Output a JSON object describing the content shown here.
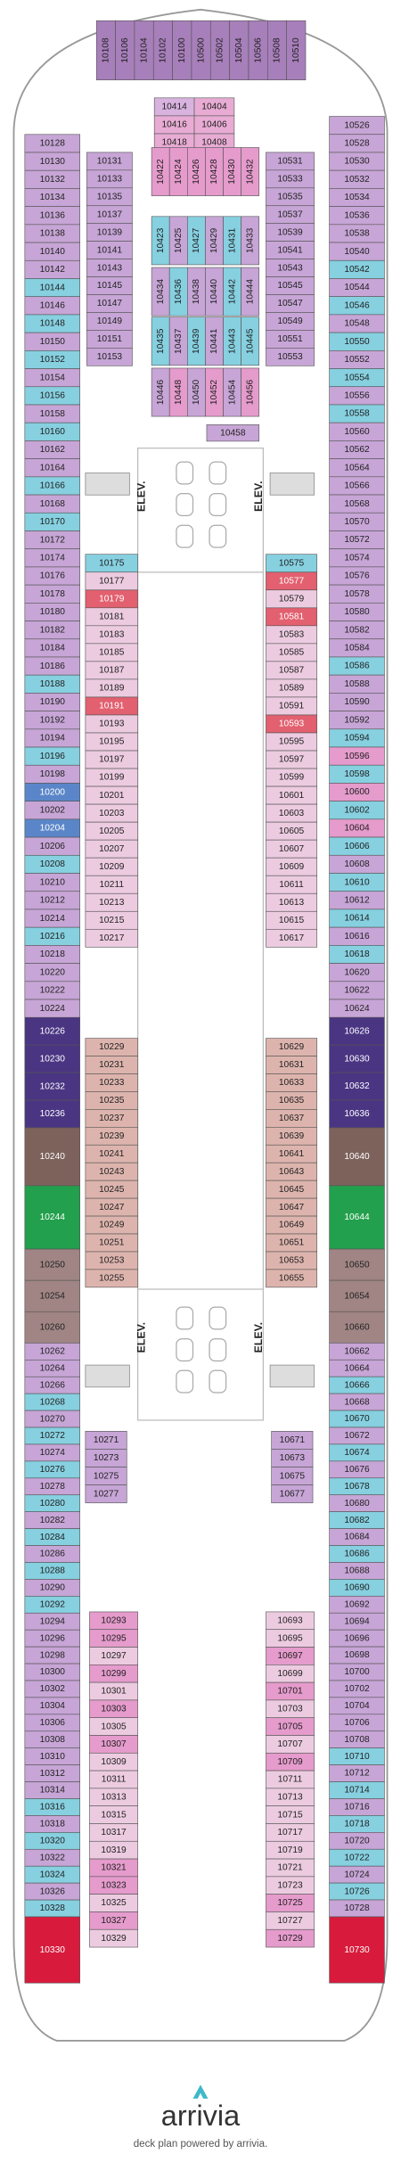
{
  "brand": "arrivia",
  "footer": "deck plan powered by arrivia.",
  "elevators": [
    "ELEV.",
    "ELEV.",
    "ELEV.",
    "ELEV."
  ],
  "sections": [
    {
      "cabins": [
        "10108",
        "10106",
        "10104",
        "10102",
        "10100",
        "10500",
        "10502",
        "10504",
        "10506",
        "10508",
        "10510"
      ],
      "colors": [
        "#a77fba",
        "#a77fba",
        "#a77fba",
        "#a77fba",
        "#a77fba",
        "#a77fba",
        "#a77fba",
        "#a77fba",
        "#a77fba",
        "#a77fba",
        "#a77fba"
      ]
    },
    {
      "cabins": [
        "10128",
        "10130",
        "10132",
        "10134",
        "10136",
        "10138",
        "10140",
        "10142",
        "10144",
        "10146",
        "10148",
        "10150",
        "10152",
        "10154",
        "10156",
        "10158",
        "10160",
        "10162",
        "10164",
        "10166",
        "10168",
        "10170",
        "10172",
        "10174",
        "10176",
        "10178",
        "10180",
        "10182",
        "10184",
        "10186",
        "10188",
        "10190",
        "10192",
        "10194",
        "10196",
        "10198",
        "10200",
        "10202",
        "10204",
        "10206",
        "10208",
        "10210",
        "10212",
        "10214",
        "10216",
        "10218",
        "10220",
        "10222",
        "10224",
        "10226",
        "10230",
        "10232",
        "10236",
        "10240",
        "10244",
        "10250",
        "10254",
        "10260",
        "10262",
        "10264",
        "10266",
        "10268",
        "10270",
        "10272",
        "10274",
        "10276",
        "10278",
        "10280",
        "10282",
        "10284",
        "10286",
        "10288",
        "10290",
        "10292",
        "10294",
        "10296",
        "10298",
        "10300",
        "10302",
        "10304",
        "10306",
        "10308",
        "10310",
        "10312",
        "10314",
        "10316",
        "10318",
        "10320",
        "10322",
        "10324",
        "10326",
        "10328",
        "10330"
      ],
      "colors": [
        "#c7a5d6",
        "#c7a5d6",
        "#c7a5d6",
        "#c7a5d6",
        "#c7a5d6",
        "#c7a5d6",
        "#c7a5d6",
        "#c7a5d6",
        "#86d0e0",
        "#c7a5d6",
        "#86d0e0",
        "#c7a5d6",
        "#86d0e0",
        "#c7a5d6",
        "#86d0e0",
        "#c7a5d6",
        "#86d0e0",
        "#c7a5d6",
        "#c7a5d6",
        "#86d0e0",
        "#c7a5d6",
        "#86d0e0",
        "#c7a5d6",
        "#c7a5d6",
        "#c7a5d6",
        "#c7a5d6",
        "#c7a5d6",
        "#c7a5d6",
        "#c7a5d6",
        "#c7a5d6",
        "#86d0e0",
        "#c7a5d6",
        "#c7a5d6",
        "#c7a5d6",
        "#86d0e0",
        "#c7a5d6",
        "#5a86c9",
        "#c7a5d6",
        "#5a86c9",
        "#c7a5d6",
        "#86d0e0",
        "#c7a5d6",
        "#c7a5d6",
        "#c7a5d6",
        "#86d0e0",
        "#c7a5d6",
        "#c7a5d6",
        "#c7a5d6",
        "#c7a5d6",
        "#4a3583",
        "#4a3583",
        "#4a3583",
        "#4a3583",
        "#7d625c",
        "#23a04d",
        "#a08584",
        "#a08584",
        "#a08584",
        "#c7a5d6",
        "#c7a5d6",
        "#c7a5d6",
        "#86d0e0",
        "#c7a5d6",
        "#86d0e0",
        "#c7a5d6",
        "#86d0e0",
        "#c7a5d6",
        "#86d0e0",
        "#c7a5d6",
        "#86d0e0",
        "#c7a5d6",
        "#86d0e0",
        "#c7a5d6",
        "#86d0e0",
        "#c7a5d6",
        "#c7a5d6",
        "#c7a5d6",
        "#c7a5d6",
        "#c7a5d6",
        "#c7a5d6",
        "#c7a5d6",
        "#c7a5d6",
        "#c7a5d6",
        "#c7a5d6",
        "#c7a5d6",
        "#86d0e0",
        "#c7a5d6",
        "#86d0e0",
        "#c7a5d6",
        "#86d0e0",
        "#c7a5d6",
        "#86d0e0",
        "#d81b3c"
      ]
    },
    {
      "cabins": [
        "10526",
        "10528",
        "10530",
        "10532",
        "10534",
        "10536",
        "10538",
        "10540",
        "10542",
        "10544",
        "10546",
        "10548",
        "10550",
        "10552",
        "10554",
        "10556",
        "10558",
        "10560",
        "10562",
        "10564",
        "10566",
        "10568",
        "10570",
        "10572",
        "10574",
        "10576",
        "10578",
        "10580",
        "10582",
        "10584",
        "10586",
        "10588",
        "10590",
        "10592",
        "10594",
        "10596",
        "10598",
        "10600",
        "10602",
        "10604",
        "10606",
        "10608",
        "10610",
        "10612",
        "10614",
        "10616",
        "10618",
        "10620",
        "10622",
        "10624",
        "10626",
        "10630",
        "10632",
        "10636",
        "10640",
        "10644",
        "10650",
        "10654",
        "10660",
        "10662",
        "10664",
        "10666",
        "10668",
        "10670",
        "10672",
        "10674",
        "10676",
        "10678",
        "10680",
        "10682",
        "10684",
        "10686",
        "10688",
        "10690",
        "10692",
        "10694",
        "10696",
        "10698",
        "10700",
        "10702",
        "10704",
        "10706",
        "10708",
        "10710",
        "10712",
        "10714",
        "10716",
        "10718",
        "10720",
        "10722",
        "10724",
        "10726",
        "10728",
        "10730"
      ],
      "colors": [
        "#c7a5d6",
        "#c7a5d6",
        "#c7a5d6",
        "#c7a5d6",
        "#c7a5d6",
        "#c7a5d6",
        "#c7a5d6",
        "#c7a5d6",
        "#86d0e0",
        "#c7a5d6",
        "#86d0e0",
        "#c7a5d6",
        "#86d0e0",
        "#c7a5d6",
        "#86d0e0",
        "#c7a5d6",
        "#86d0e0",
        "#c7a5d6",
        "#c7a5d6",
        "#c7a5d6",
        "#c7a5d6",
        "#c7a5d6",
        "#c7a5d6",
        "#c7a5d6",
        "#c7a5d6",
        "#c7a5d6",
        "#c7a5d6",
        "#c7a5d6",
        "#c7a5d6",
        "#c7a5d6",
        "#86d0e0",
        "#c7a5d6",
        "#c7a5d6",
        "#c7a5d6",
        "#86d0e0",
        "#e59bcc",
        "#86d0e0",
        "#e59bcc",
        "#86d0e0",
        "#e59bcc",
        "#86d0e0",
        "#c7a5d6",
        "#86d0e0",
        "#c7a5d6",
        "#86d0e0",
        "#c7a5d6",
        "#86d0e0",
        "#c7a5d6",
        "#c7a5d6",
        "#c7a5d6",
        "#4a3583",
        "#4a3583",
        "#4a3583",
        "#4a3583",
        "#7d625c",
        "#23a04d",
        "#a08584",
        "#a08584",
        "#a08584",
        "#c7a5d6",
        "#c7a5d6",
        "#86d0e0",
        "#c7a5d6",
        "#86d0e0",
        "#c7a5d6",
        "#86d0e0",
        "#c7a5d6",
        "#86d0e0",
        "#c7a5d6",
        "#86d0e0",
        "#c7a5d6",
        "#86d0e0",
        "#c7a5d6",
        "#86d0e0",
        "#c7a5d6",
        "#c7a5d6",
        "#c7a5d6",
        "#c7a5d6",
        "#c7a5d6",
        "#c7a5d6",
        "#c7a5d6",
        "#c7a5d6",
        "#c7a5d6",
        "#86d0e0",
        "#c7a5d6",
        "#86d0e0",
        "#c7a5d6",
        "#86d0e0",
        "#c7a5d6",
        "#86d0e0",
        "#c7a5d6",
        "#86d0e0",
        "#c7a5d6",
        "#d81b3c"
      ]
    },
    {
      "cabins": [
        "10131",
        "10133",
        "10135",
        "10137",
        "10139",
        "10141",
        "10143",
        "10145",
        "10147",
        "10149",
        "10151",
        "10153"
      ],
      "colors": [
        "#c7a5d6",
        "#c7a5d6",
        "#c7a5d6",
        "#c7a5d6",
        "#c7a5d6",
        "#c7a5d6",
        "#c7a5d6",
        "#c7a5d6",
        "#c7a5d6",
        "#c7a5d6",
        "#c7a5d6",
        "#c7a5d6"
      ]
    },
    {
      "cabins": [
        "10531",
        "10533",
        "10535",
        "10537",
        "10539",
        "10541",
        "10543",
        "10545",
        "10547",
        "10549",
        "10551",
        "10553"
      ],
      "colors": [
        "#c7a5d6",
        "#c7a5d6",
        "#c7a5d6",
        "#c7a5d6",
        "#c7a5d6",
        "#c7a5d6",
        "#c7a5d6",
        "#c7a5d6",
        "#c7a5d6",
        "#c7a5d6",
        "#c7a5d6",
        "#c7a5d6"
      ]
    },
    {
      "cabins": [
        "10414",
        "10404",
        "10416",
        "10406",
        "10418",
        "10408"
      ],
      "colors": [
        "#d9b3e0",
        "#e8acd4",
        "#e8acd4",
        "#e8acd4",
        "#e8acd4",
        "#e8acd4"
      ]
    },
    {
      "cabins": [
        "10422",
        "10424",
        "10426",
        "10428",
        "10430",
        "10432",
        "10423",
        "10425",
        "10427",
        "10429",
        "10431",
        "10433",
        "10434",
        "10436",
        "10438",
        "10440",
        "10442",
        "10444",
        "10435",
        "10437",
        "10439",
        "10441",
        "10443",
        "10445",
        "10446",
        "10448",
        "10450",
        "10452",
        "10454",
        "10456"
      ],
      "colors": [
        "#e59bcc",
        "#e59bcc",
        "#e59bcc",
        "#e59bcc",
        "#e59bcc",
        "#e59bcc",
        "#86d0e0",
        "#c7a5d6",
        "#86d0e0",
        "#c7a5d6",
        "#86d0e0",
        "#c7a5d6",
        "#c7a5d6",
        "#86d0e0",
        "#c7a5d6",
        "#c7a5d6",
        "#86d0e0",
        "#c7a5d6",
        "#86d0e0",
        "#c7a5d6",
        "#86d0e0",
        "#c7a5d6",
        "#86d0e0",
        "#86d0e0",
        "#c7a5d6",
        "#e59bcc",
        "#c7a5d6",
        "#e59bcc",
        "#c7a5d6",
        "#e59bcc"
      ]
    },
    {
      "cabins": [
        "10458"
      ],
      "colors": [
        "#c7a5d6"
      ]
    },
    {
      "cabins": [
        "10175",
        "10177",
        "10179",
        "10181",
        "10183",
        "10185",
        "10187",
        "10189",
        "10191",
        "10193",
        "10195",
        "10197",
        "10199",
        "10201",
        "10203",
        "10205",
        "10207",
        "10209",
        "10211",
        "10213",
        "10215",
        "10217"
      ],
      "colors": [
        "#86d0e0",
        "#eccbe0",
        "#e2606f",
        "#eccbe0",
        "#eccbe0",
        "#eccbe0",
        "#eccbe0",
        "#eccbe0",
        "#e2606f",
        "#eccbe0",
        "#eccbe0",
        "#eccbe0",
        "#eccbe0",
        "#eccbe0",
        "#eccbe0",
        "#eccbe0",
        "#eccbe0",
        "#eccbe0",
        "#eccbe0",
        "#eccbe0",
        "#eccbe0",
        "#eccbe0"
      ]
    },
    {
      "cabins": [
        "10575",
        "10577",
        "10579",
        "10581",
        "10583",
        "10585",
        "10587",
        "10589",
        "10591",
        "10593",
        "10595",
        "10597",
        "10599",
        "10601",
        "10603",
        "10605",
        "10607",
        "10609",
        "10611",
        "10613",
        "10615",
        "10617"
      ],
      "colors": [
        "#86d0e0",
        "#e2606f",
        "#eccbe0",
        "#e2606f",
        "#eccbe0",
        "#eccbe0",
        "#eccbe0",
        "#eccbe0",
        "#eccbe0",
        "#e2606f",
        "#eccbe0",
        "#eccbe0",
        "#eccbe0",
        "#eccbe0",
        "#eccbe0",
        "#eccbe0",
        "#eccbe0",
        "#eccbe0",
        "#eccbe0",
        "#eccbe0",
        "#eccbe0",
        "#eccbe0"
      ]
    },
    {
      "cabins": [
        "10229",
        "10231",
        "10233",
        "10235",
        "10237",
        "10239",
        "10241",
        "10243",
        "10245",
        "10247",
        "10249",
        "10251",
        "10253",
        "10255"
      ],
      "colors": [
        "#ddb4ad",
        "#ddb4ad",
        "#ddb4ad",
        "#ddb4ad",
        "#ddb4ad",
        "#ddb4ad",
        "#ddb4ad",
        "#ddb4ad",
        "#ddb4ad",
        "#ddb4ad",
        "#ddb4ad",
        "#ddb4ad",
        "#ddb4ad",
        "#ddb4ad"
      ]
    },
    {
      "cabins": [
        "10629",
        "10631",
        "10633",
        "10635",
        "10637",
        "10639",
        "10641",
        "10643",
        "10645",
        "10647",
        "10649",
        "10651",
        "10653",
        "10655"
      ],
      "colors": [
        "#ddb4ad",
        "#ddb4ad",
        "#ddb4ad",
        "#ddb4ad",
        "#ddb4ad",
        "#ddb4ad",
        "#ddb4ad",
        "#ddb4ad",
        "#ddb4ad",
        "#ddb4ad",
        "#ddb4ad",
        "#ddb4ad",
        "#ddb4ad",
        "#ddb4ad"
      ]
    },
    {
      "cabins": [
        "10271",
        "10273",
        "10275",
        "10277"
      ],
      "colors": [
        "#c7a5d6",
        "#c7a5d6",
        "#c7a5d6",
        "#c7a5d6"
      ]
    },
    {
      "cabins": [
        "10671",
        "10673",
        "10675",
        "10677"
      ],
      "colors": [
        "#c7a5d6",
        "#c7a5d6",
        "#c7a5d6",
        "#c7a5d6"
      ]
    },
    {
      "cabins": [
        "10293",
        "10295",
        "10297",
        "10299",
        "10301",
        "10303",
        "10305",
        "10307",
        "10309",
        "10311",
        "10313",
        "10315",
        "10317",
        "10319",
        "10321",
        "10323",
        "10325",
        "10327",
        "10329"
      ],
      "colors": [
        "#e59bcc",
        "#e59bcc",
        "#eccbe0",
        "#e59bcc",
        "#eccbe0",
        "#e59bcc",
        "#eccbe0",
        "#e59bcc",
        "#eccbe0",
        "#eccbe0",
        "#eccbe0",
        "#eccbe0",
        "#eccbe0",
        "#eccbe0",
        "#e59bcc",
        "#e59bcc",
        "#eccbe0",
        "#e59bcc",
        "#eccbe0"
      ]
    },
    {
      "cabins": [
        "10693",
        "10695",
        "10697",
        "10699",
        "10701",
        "10703",
        "10705",
        "10707",
        "10709",
        "10711",
        "10713",
        "10715",
        "10717",
        "10719",
        "10721",
        "10723",
        "10725",
        "10727",
        "10729"
      ],
      "colors": [
        "#eccbe0",
        "#eccbe0",
        "#e59bcc",
        "#eccbe0",
        "#e59bcc",
        "#eccbe0",
        "#e59bcc",
        "#eccbe0",
        "#e59bcc",
        "#eccbe0",
        "#eccbe0",
        "#eccbe0",
        "#eccbe0",
        "#eccbe0",
        "#eccbe0",
        "#eccbe0",
        "#e59bcc",
        "#eccbe0",
        "#e59bcc"
      ]
    }
  ]
}
